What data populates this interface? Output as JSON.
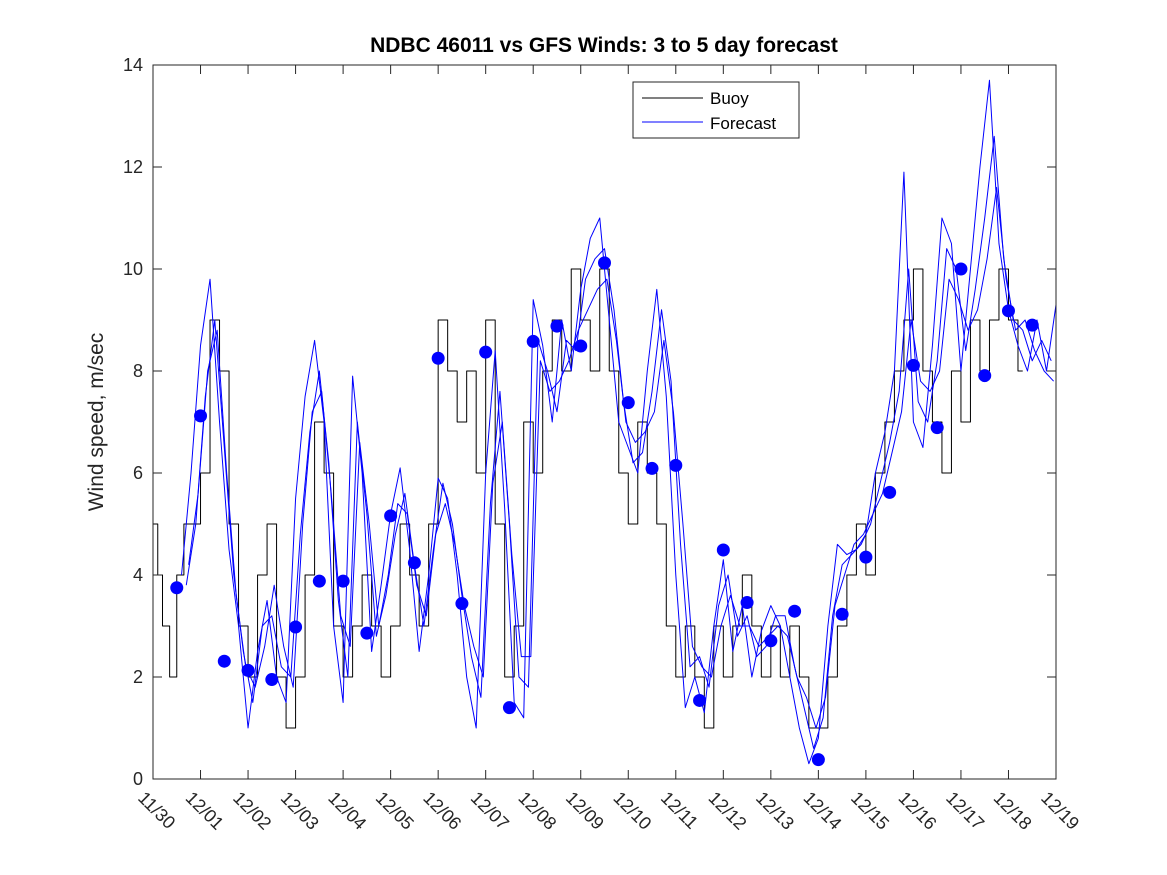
{
  "chart_data": {
    "type": "line",
    "title": "NDBC 46011 vs GFS Winds: 3 to 5 day forecast",
    "xlabel": "",
    "ylabel": "Wind speed, m/sec",
    "xlim": [
      0,
      19
    ],
    "ylim": [
      0,
      14
    ],
    "x_ticks": [
      0,
      1,
      2,
      3,
      4,
      5,
      6,
      7,
      8,
      9,
      10,
      11,
      12,
      13,
      14,
      15,
      16,
      17,
      18,
      19
    ],
    "x_tick_labels": [
      "11/30",
      "12/01",
      "12/02",
      "12/03",
      "12/04",
      "12/05",
      "12/06",
      "12/07",
      "12/08",
      "12/09",
      "12/10",
      "12/11",
      "12/12",
      "12/13",
      "12/14",
      "12/15",
      "12/16",
      "12/17",
      "12/18",
      "12/19"
    ],
    "y_ticks": [
      0,
      2,
      4,
      6,
      8,
      10,
      12,
      14
    ],
    "y_tick_labels": [
      "0",
      "2",
      "4",
      "6",
      "8",
      "10",
      "12",
      "14"
    ],
    "grid": false,
    "legend": {
      "location": "top-center",
      "entries": [
        "Buoy",
        "Forecast"
      ]
    },
    "colors": {
      "buoy": "#000000",
      "forecast": "#0000ff",
      "markers": "#0000ff"
    },
    "series": [
      {
        "name": "Buoy",
        "style": "step",
        "x": [
          0.0,
          0.1,
          0.2,
          0.35,
          0.5,
          0.65,
          0.8,
          1.0,
          1.2,
          1.4,
          1.6,
          1.8,
          2.0,
          2.2,
          2.4,
          2.6,
          2.8,
          3.0,
          3.2,
          3.4,
          3.6,
          3.8,
          4.0,
          4.2,
          4.4,
          4.6,
          4.8,
          5.0,
          5.2,
          5.4,
          5.6,
          5.8,
          6.0,
          6.2,
          6.4,
          6.6,
          6.8,
          7.0,
          7.2,
          7.4,
          7.6,
          7.8,
          8.0,
          8.2,
          8.4,
          8.6,
          8.8,
          9.0,
          9.2,
          9.4,
          9.6,
          9.8,
          10.0,
          10.2,
          10.4,
          10.6,
          10.8,
          11.0,
          11.2,
          11.4,
          11.6,
          11.8,
          12.0,
          12.2,
          12.4,
          12.6,
          12.8,
          13.0,
          13.2,
          13.4,
          13.6,
          13.8,
          14.0,
          14.2,
          14.4,
          14.6,
          14.8,
          15.0,
          15.2,
          15.4,
          15.6,
          15.8,
          16.0,
          16.2,
          16.4,
          16.6,
          16.8,
          17.0,
          17.2,
          17.4,
          17.6,
          17.8,
          18.0,
          18.2
        ],
        "values": [
          5,
          4,
          3,
          2,
          4,
          5,
          5,
          6,
          9,
          8,
          5,
          3,
          2,
          4,
          5,
          2,
          1,
          2,
          4,
          7,
          6,
          3,
          2,
          3,
          4,
          3,
          2,
          3,
          5,
          4,
          3,
          5,
          9,
          8,
          7,
          8,
          6,
          9,
          5,
          2,
          3,
          7,
          6,
          8,
          9,
          8,
          10,
          9,
          8,
          10,
          8,
          6,
          5,
          7,
          6,
          5,
          3,
          2,
          3,
          2,
          1,
          3,
          2,
          3,
          4,
          3,
          2,
          3,
          2,
          3,
          2,
          1,
          1,
          2,
          3,
          4,
          5,
          4,
          6,
          7,
          8,
          9,
          10,
          8,
          7,
          6,
          8,
          7,
          9,
          8,
          9,
          10,
          9,
          8
        ]
      },
      {
        "name": "Forecast",
        "x": [
          0.6,
          0.8,
          1.0,
          1.2,
          1.4,
          1.6,
          1.8,
          2.0,
          2.2,
          2.4,
          2.6,
          2.8,
          3.0,
          3.2,
          3.4,
          3.6,
          3.8,
          4.0,
          4.2,
          4.4,
          4.6,
          4.8,
          5.0,
          5.2,
          5.4,
          5.6,
          5.8,
          6.0,
          6.2,
          6.4,
          6.6,
          6.8,
          7.0,
          7.2,
          7.4,
          7.6,
          7.8,
          8.0,
          8.2,
          8.4,
          8.6,
          8.8,
          9.0,
          9.2,
          9.4,
          9.6,
          9.8,
          10.0,
          10.2,
          10.4,
          10.6,
          10.8,
          11.0,
          11.2,
          11.4,
          11.6,
          11.8,
          12.0,
          12.2,
          12.4,
          12.6,
          12.8,
          13.0,
          13.2,
          13.4,
          13.6,
          13.8,
          14.0,
          14.2,
          14.4,
          14.6,
          14.8,
          15.0,
          15.2,
          15.4,
          15.6,
          15.8,
          16.0,
          16.2,
          16.4,
          16.6,
          16.8,
          17.0,
          17.2,
          17.4,
          17.6,
          17.8,
          18.0,
          18.2,
          18.4,
          18.6,
          18.8,
          19.0
        ],
        "values": [
          4.0,
          6.0,
          8.5,
          9.8,
          7.0,
          4.5,
          3.0,
          1.0,
          2.5,
          3.5,
          2.0,
          1.5,
          5.5,
          7.5,
          8.6,
          7.0,
          3.0,
          1.5,
          7.9,
          6.0,
          2.5,
          3.8,
          5.2,
          6.1,
          4.5,
          2.5,
          4.0,
          5.9,
          5.5,
          4.0,
          2.0,
          1.0,
          6.0,
          8.4,
          5.3,
          1.5,
          1.2,
          9.4,
          8.5,
          7.0,
          9.0,
          8.0,
          9.6,
          10.6,
          11.0,
          9.0,
          7.0,
          6.5,
          6.0,
          8.0,
          9.6,
          7.5,
          4.0,
          1.4,
          2.0,
          1.3,
          3.0,
          4.3,
          2.5,
          3.4,
          2.0,
          2.9,
          3.4,
          3.0,
          2.0,
          1.0,
          0.3,
          0.8,
          3.0,
          4.6,
          4.4,
          4.5,
          4.8,
          6.0,
          6.8,
          8.0,
          11.9,
          7.0,
          6.5,
          8.5,
          11.0,
          10.5,
          8.0,
          10.0,
          12.0,
          13.7,
          10.5,
          9.2,
          8.5,
          8.0,
          9.0,
          8.0,
          9.3
        ]
      },
      {
        "name": "Forecast",
        "x": [
          0.7,
          0.9,
          1.1,
          1.3,
          1.5,
          1.7,
          1.9,
          2.1,
          2.3,
          2.5,
          2.7,
          2.9,
          3.1,
          3.3,
          3.5,
          3.7,
          3.9,
          4.1,
          4.3,
          4.5,
          4.7,
          4.9,
          5.1,
          5.3,
          5.5,
          5.7,
          5.9,
          6.1,
          6.3,
          6.5,
          6.7,
          6.9,
          7.1,
          7.3,
          7.5,
          7.7,
          7.9,
          8.1,
          8.3,
          8.5,
          8.7,
          8.9,
          9.1,
          9.3,
          9.5,
          9.7,
          9.9,
          10.1,
          10.3,
          10.5,
          10.7,
          10.9,
          11.1,
          11.3,
          11.5,
          11.7,
          11.9,
          12.1,
          12.3,
          12.5,
          12.7,
          12.9,
          13.1,
          13.3,
          13.5,
          13.7,
          13.9,
          14.1,
          14.3,
          14.5,
          14.7,
          14.9,
          15.1,
          15.3,
          15.5,
          15.7,
          15.9,
          16.1,
          16.3,
          16.5,
          16.7,
          16.9,
          17.1,
          17.3,
          17.5,
          17.7,
          17.9,
          18.1,
          18.3,
          18.5,
          18.7,
          18.9
        ],
        "values": [
          3.8,
          5.0,
          7.5,
          9.0,
          6.5,
          4.0,
          2.5,
          1.5,
          3.0,
          3.2,
          2.2,
          2.0,
          4.8,
          6.8,
          8.0,
          6.2,
          3.5,
          2.0,
          7.0,
          5.2,
          2.8,
          3.6,
          4.8,
          5.6,
          4.2,
          3.0,
          4.5,
          5.8,
          5.0,
          3.6,
          2.4,
          1.6,
          5.4,
          7.6,
          5.0,
          2.0,
          1.8,
          8.6,
          8.0,
          7.2,
          8.6,
          8.4,
          9.8,
          10.2,
          10.4,
          9.2,
          7.4,
          6.2,
          6.4,
          7.6,
          9.2,
          7.8,
          4.6,
          2.2,
          2.4,
          1.8,
          3.4,
          4.0,
          2.8,
          3.2,
          2.4,
          2.6,
          3.2,
          3.2,
          2.2,
          1.4,
          0.6,
          1.2,
          3.2,
          4.2,
          4.4,
          4.6,
          5.0,
          5.8,
          6.6,
          7.6,
          10.0,
          7.4,
          7.0,
          8.2,
          10.4,
          10.0,
          8.4,
          9.6,
          11.0,
          12.6,
          10.2,
          9.0,
          8.8,
          8.2,
          8.6,
          8.2
        ]
      },
      {
        "name": "Forecast",
        "x": [
          0.75,
          0.95,
          1.15,
          1.35,
          1.55,
          1.75,
          1.95,
          2.15,
          2.35,
          2.55,
          2.75,
          2.95,
          3.15,
          3.35,
          3.55,
          3.75,
          3.95,
          4.15,
          4.35,
          4.55,
          4.75,
          4.95,
          5.15,
          5.35,
          5.55,
          5.75,
          5.95,
          6.15,
          6.35,
          6.55,
          6.75,
          6.95,
          7.15,
          7.35,
          7.55,
          7.75,
          7.95,
          8.15,
          8.35,
          8.55,
          8.75,
          8.95,
          9.15,
          9.35,
          9.55,
          9.75,
          9.95,
          10.15,
          10.35,
          10.55,
          10.75,
          10.95,
          11.15,
          11.35,
          11.55,
          11.75,
          11.95,
          12.15,
          12.35,
          12.55,
          12.75,
          12.95,
          13.15,
          13.35,
          13.55,
          13.75,
          13.95,
          14.15,
          14.35,
          14.55,
          14.75,
          14.95,
          15.15,
          15.35,
          15.55,
          15.75,
          15.95,
          16.15,
          16.35,
          16.55,
          16.75,
          16.95,
          17.15,
          17.35,
          17.55,
          17.75,
          17.95,
          18.15,
          18.35,
          18.55,
          18.75,
          18.95
        ],
        "values": [
          4.2,
          5.6,
          8.0,
          8.8,
          6.0,
          3.6,
          2.2,
          1.8,
          2.6,
          3.8,
          2.6,
          1.8,
          5.0,
          7.2,
          7.6,
          5.6,
          3.2,
          2.6,
          6.6,
          5.0,
          3.0,
          4.0,
          5.4,
          5.2,
          3.8,
          3.2,
          4.8,
          5.4,
          4.6,
          3.4,
          2.6,
          2.0,
          5.8,
          7.0,
          4.4,
          2.4,
          2.4,
          8.2,
          7.6,
          7.8,
          8.2,
          8.8,
          9.2,
          9.6,
          9.8,
          8.6,
          7.0,
          6.6,
          6.8,
          7.2,
          8.6,
          7.2,
          5.0,
          2.6,
          2.2,
          2.0,
          3.0,
          3.6,
          3.0,
          3.0,
          2.6,
          2.8,
          3.0,
          2.8,
          2.0,
          1.6,
          1.0,
          1.6,
          3.4,
          4.0,
          4.6,
          4.8,
          5.2,
          5.6,
          6.4,
          7.2,
          9.0,
          7.8,
          7.6,
          8.0,
          9.8,
          9.4,
          8.8,
          9.2,
          10.2,
          11.6,
          9.8,
          8.8,
          9.0,
          8.4,
          8.0,
          7.8
        ]
      }
    ],
    "markers": {
      "name": "Forecast points",
      "x": [
        0.5,
        1.0,
        1.5,
        2.0,
        2.5,
        3.0,
        3.5,
        4.0,
        4.5,
        5.0,
        5.5,
        6.0,
        6.5,
        7.0,
        7.5,
        8.0,
        8.5,
        9.0,
        9.5,
        10.0,
        10.5,
        11.0,
        11.5,
        12.0,
        12.5,
        13.0,
        13.5,
        14.0,
        14.5,
        15.0,
        15.5,
        16.0,
        16.5,
        17.0,
        17.5,
        18.0,
        18.5
      ],
      "values": [
        3.75,
        7.12,
        2.31,
        2.13,
        1.95,
        2.98,
        3.88,
        3.88,
        2.86,
        5.16,
        4.24,
        8.25,
        3.44,
        8.37,
        1.4,
        8.58,
        8.88,
        8.49,
        10.12,
        7.38,
        6.09,
        6.15,
        1.54,
        4.49,
        3.46,
        2.71,
        3.29,
        0.38,
        3.23,
        4.35,
        5.62,
        8.11,
        6.89,
        10.0,
        7.91,
        9.18,
        8.9
      ]
    }
  }
}
